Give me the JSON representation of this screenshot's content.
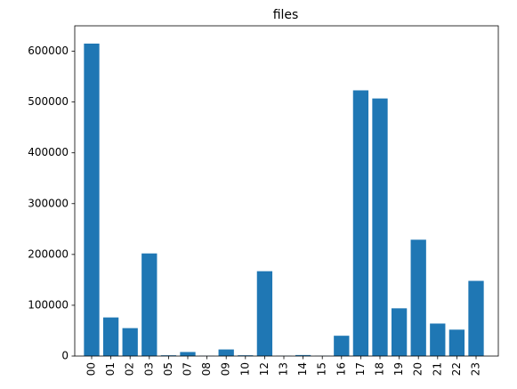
{
  "chart_data": {
    "type": "bar",
    "title": "files",
    "xlabel": "",
    "ylabel": "",
    "categories": [
      "00",
      "01",
      "02",
      "03",
      "05",
      "07",
      "08",
      "09",
      "10",
      "12",
      "13",
      "14",
      "15",
      "16",
      "17",
      "18",
      "19",
      "20",
      "21",
      "22",
      "23"
    ],
    "values": [
      615000,
      76000,
      55000,
      202000,
      1500,
      8000,
      500,
      13000,
      1500,
      167000,
      500,
      2000,
      500,
      40000,
      523000,
      507000,
      94000,
      229000,
      64000,
      52000,
      148000
    ],
    "ylim": [
      0,
      650000
    ],
    "yticks": [
      0,
      100000,
      200000,
      300000,
      400000,
      500000,
      600000
    ],
    "ytick_labels": [
      "0",
      "100000",
      "200000",
      "300000",
      "400000",
      "500000",
      "600000"
    ],
    "bar_color": "#1f77b4",
    "grid": false
  }
}
